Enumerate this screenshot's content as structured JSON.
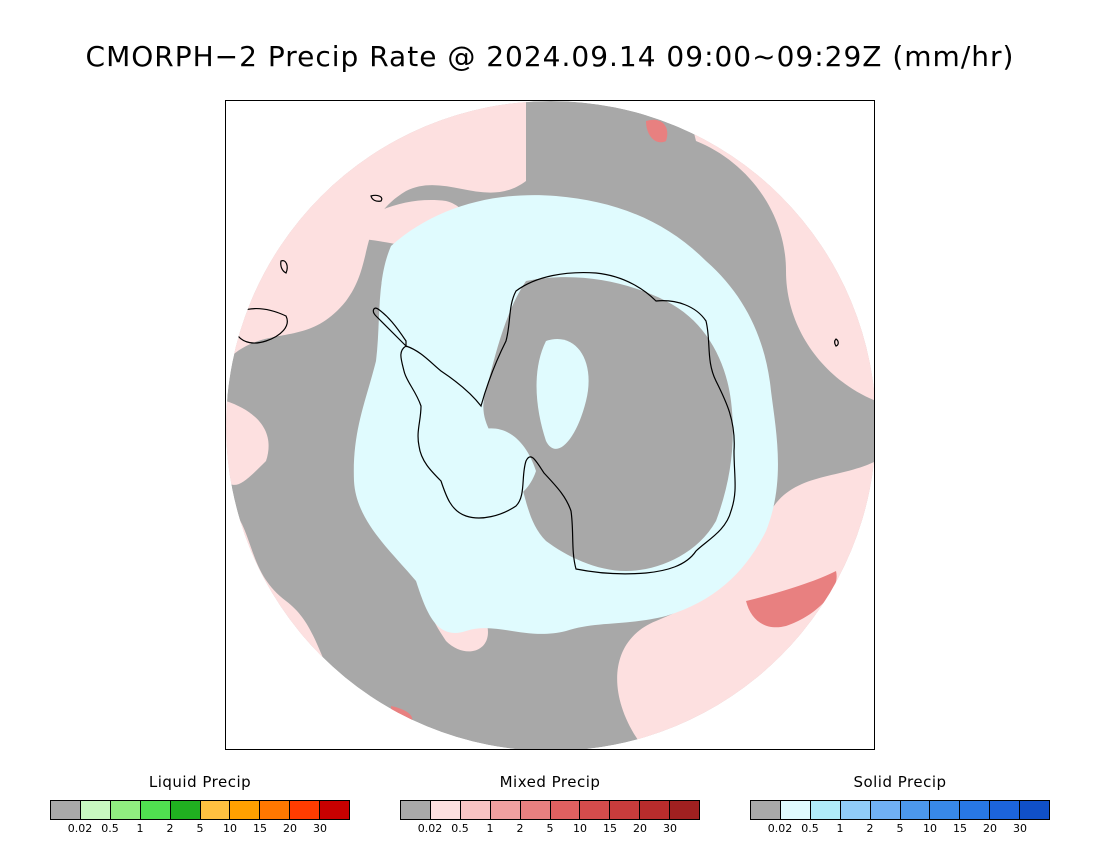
{
  "title": "CMORPH−2 Precip Rate @ 2024.09.14 09:00~09:29Z (mm/hr)",
  "map": {
    "projection": "south-polar-stereographic",
    "background_color": "#ffffff",
    "no_precip_color": "#a8a8a8",
    "mixed_light_color": "#fde0e0",
    "solid_light_color": "#e0fbfe",
    "coastline_color": "#000000"
  },
  "legends": [
    {
      "title": "Liquid Precip",
      "colors": [
        "#a8a8a8",
        "#c8f8c0",
        "#90ee80",
        "#50e050",
        "#20b020",
        "#ffc040",
        "#ffa000",
        "#ff7800",
        "#ff3c00",
        "#c80000"
      ],
      "ticks": [
        "0.02",
        "0.5",
        "1",
        "2",
        "5",
        "10",
        "15",
        "20",
        "30"
      ]
    },
    {
      "title": "Mixed Precip",
      "colors": [
        "#a8a8a8",
        "#fde0e0",
        "#f8c4c4",
        "#f0a0a0",
        "#e88080",
        "#e06060",
        "#d44c4c",
        "#c83c3c",
        "#b82c2c",
        "#a02020"
      ],
      "ticks": [
        "0.02",
        "0.5",
        "1",
        "2",
        "5",
        "10",
        "15",
        "20",
        "30"
      ]
    },
    {
      "title": "Solid Precip",
      "colors": [
        "#a8a8a8",
        "#e0fbfe",
        "#b0ecfa",
        "#90ccf8",
        "#70b0f4",
        "#4c98ec",
        "#3888e8",
        "#2878e4",
        "#1c64dc",
        "#1050c8"
      ],
      "ticks": [
        "0.02",
        "0.5",
        "1",
        "2",
        "5",
        "10",
        "15",
        "20",
        "30"
      ]
    }
  ]
}
